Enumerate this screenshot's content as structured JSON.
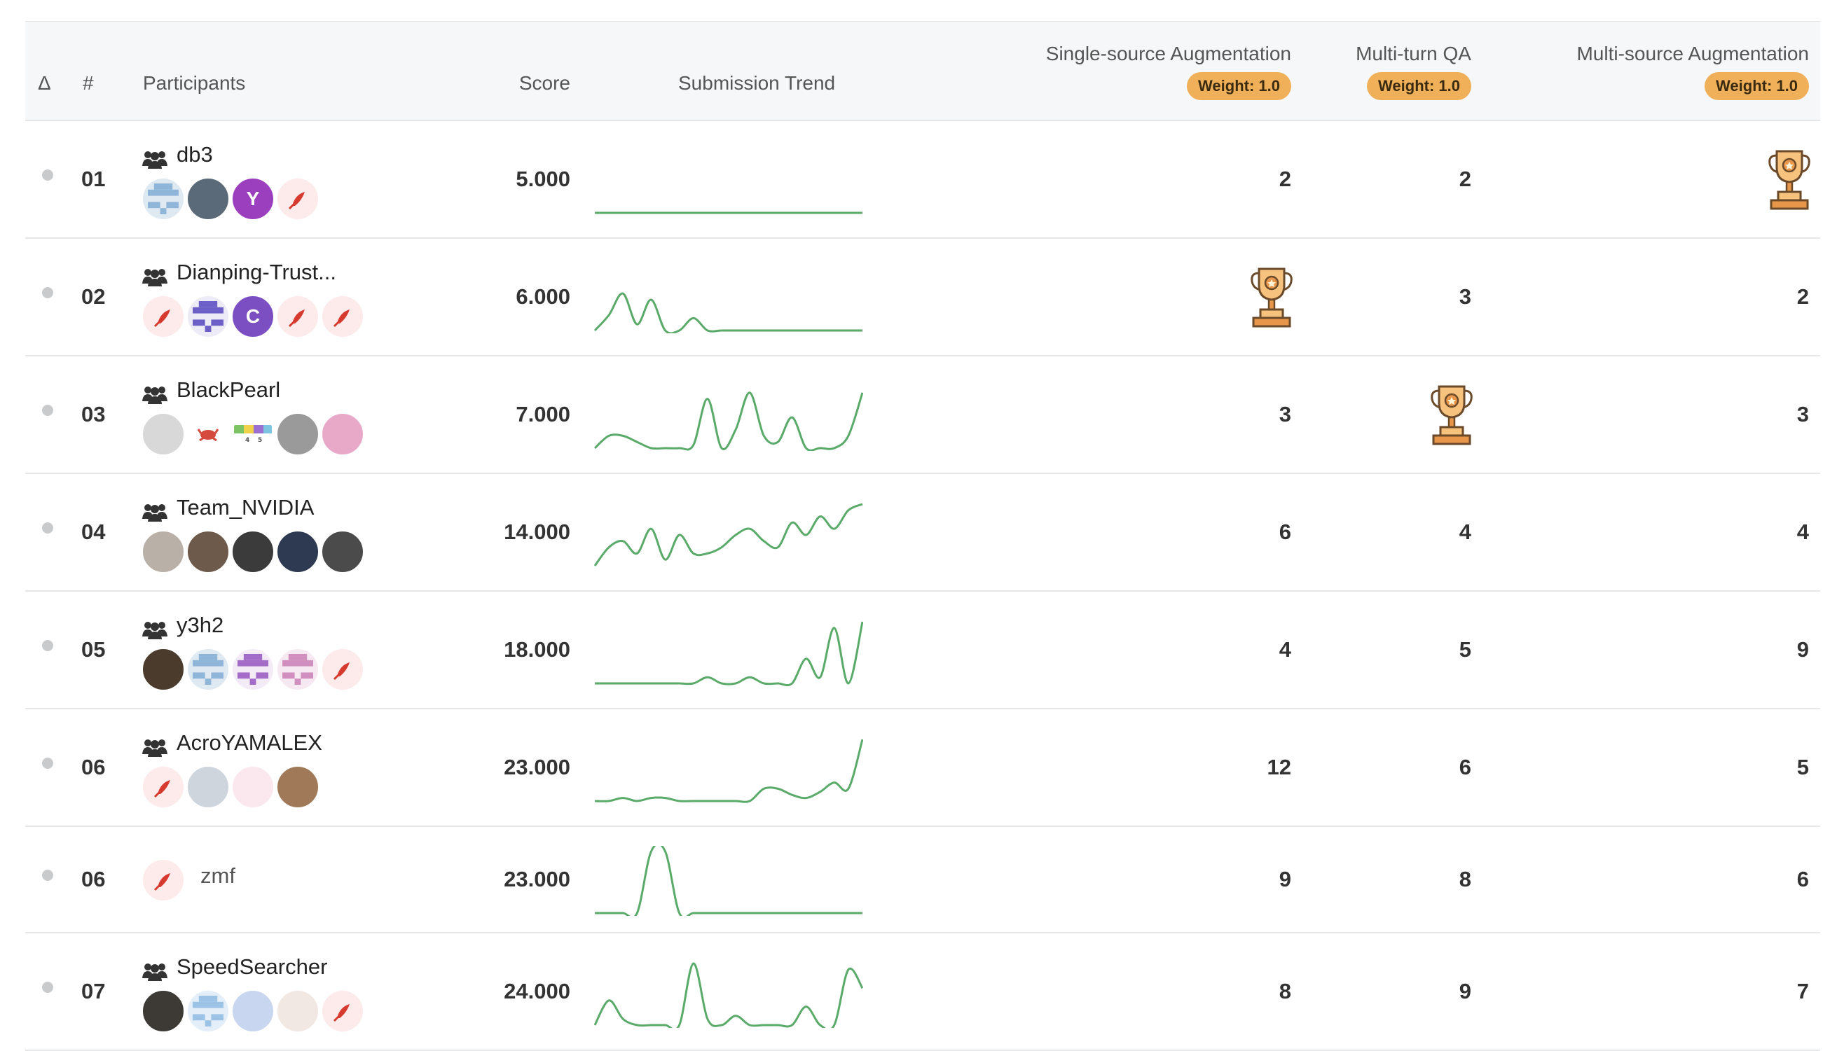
{
  "header": {
    "delta": "Δ",
    "rank": "#",
    "participants": "Participants",
    "score": "Score",
    "trend": "Submission Trend",
    "col1": "Single-source Augmentation",
    "col2": "Multi-turn QA",
    "col3": "Multi-source Augmentation",
    "weight": "Weight: 1.0"
  },
  "colors": {
    "trend_line": "#5aaa6a",
    "badge_bg": "#f0b05a",
    "trophy": "#e8974a",
    "header_bg": "#f6f7f8"
  },
  "rows": [
    {
      "rank": "01",
      "name": "db3",
      "team": true,
      "score": "5.000",
      "avatars": [
        "pixel-blue",
        "photo-dark",
        "Y",
        "kiwi"
      ],
      "col1": "2",
      "col2": "2",
      "col3": "trophy",
      "trend": [
        0,
        0,
        0,
        0,
        0,
        0,
        0,
        0,
        0,
        0,
        0,
        0,
        0,
        0,
        0,
        0,
        0,
        0,
        0,
        0
      ]
    },
    {
      "rank": "02",
      "name": "Dianping-Trust...",
      "team": true,
      "score": "6.000",
      "avatars": [
        "kiwi",
        "pixel-purple",
        "C",
        "kiwi",
        "kiwi"
      ],
      "col1": "trophy",
      "col2": "3",
      "col3": "2",
      "trend": [
        0,
        0.25,
        0.6,
        0.1,
        0.5,
        0,
        0,
        0.2,
        0,
        0,
        0,
        0,
        0,
        0,
        0,
        0,
        0,
        0,
        0,
        0
      ]
    },
    {
      "rank": "03",
      "name": "BlackPearl",
      "team": true,
      "score": "7.000",
      "avatars": [
        "photo-gray",
        "crab",
        "color-bars",
        "photo-cat",
        "photo-pink"
      ],
      "col1": "3",
      "col2": "trophy",
      "col3": "3",
      "trend": [
        0,
        0.2,
        0.2,
        0.1,
        0,
        0,
        0,
        0.05,
        0.8,
        0,
        0.3,
        0.9,
        0.2,
        0.1,
        0.5,
        0,
        0,
        0,
        0.2,
        0.9
      ]
    },
    {
      "rank": "04",
      "name": "Team_NVIDIA",
      "team": true,
      "score": "14.000",
      "avatars": [
        "photo-clock",
        "photo-man1",
        "photo-man2",
        "photo-man3",
        "photo-man4"
      ],
      "col1": "6",
      "col2": "4",
      "col3": "4",
      "trend": [
        0,
        0.3,
        0.4,
        0.2,
        0.6,
        0.1,
        0.5,
        0.2,
        0.2,
        0.3,
        0.5,
        0.6,
        0.4,
        0.3,
        0.7,
        0.5,
        0.8,
        0.6,
        0.9,
        1
      ]
    },
    {
      "rank": "05",
      "name": "y3h2",
      "team": true,
      "score": "18.000",
      "avatars": [
        "photo-books",
        "pixel-blue2",
        "pixel-violet",
        "pixel-pink",
        "kiwi"
      ],
      "col1": "4",
      "col2": "5",
      "col3": "9",
      "trend": [
        0,
        0,
        0,
        0,
        0,
        0,
        0,
        0,
        0.1,
        0,
        0,
        0.1,
        0,
        0,
        0,
        0.4,
        0.1,
        0.9,
        0,
        1
      ]
    },
    {
      "rank": "06",
      "name": "AcroYAMALEX",
      "team": true,
      "score": "23.000",
      "avatars": [
        "kiwi",
        "photo-anime",
        "sketch-pink",
        "photo-face"
      ],
      "col1": "12",
      "col2": "6",
      "col3": "5",
      "trend": [
        0,
        0,
        0.05,
        0,
        0.05,
        0.05,
        0,
        0,
        0,
        0,
        0,
        0,
        0.2,
        0.2,
        0.1,
        0.05,
        0.15,
        0.3,
        0.2,
        1
      ]
    },
    {
      "rank": "06",
      "name": "zmf",
      "team": false,
      "score": "23.000",
      "avatars": [
        "kiwi"
      ],
      "col1": "9",
      "col2": "8",
      "col3": "6",
      "trend": [
        0,
        0,
        0,
        0,
        1,
        1,
        0,
        0,
        0,
        0,
        0,
        0,
        0,
        0,
        0,
        0,
        0,
        0,
        0,
        0
      ]
    },
    {
      "rank": "07",
      "name": "SpeedSearcher",
      "team": true,
      "score": "24.000",
      "avatars": [
        "photo-wolf",
        "pixel-lightblue",
        "photo-anime2",
        "photo-figure",
        "kiwi"
      ],
      "col1": "8",
      "col2": "9",
      "col3": "7",
      "trend": [
        0,
        0.4,
        0.1,
        0,
        0,
        0,
        0,
        1,
        0.1,
        0,
        0.15,
        0,
        0,
        0,
        0,
        0.3,
        0,
        0,
        0.9,
        0.6
      ]
    }
  ]
}
